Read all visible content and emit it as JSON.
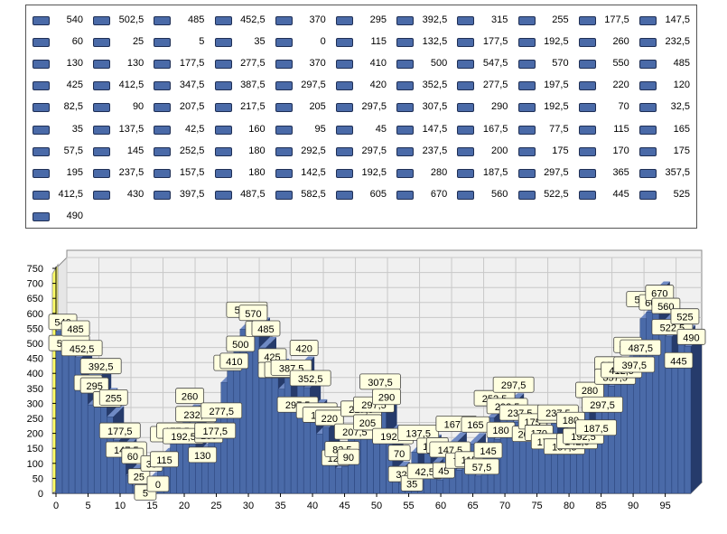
{
  "chart_data": {
    "type": "bar",
    "x": [
      0,
      1,
      2,
      3,
      4,
      5,
      6,
      7,
      8,
      9,
      10,
      11,
      12,
      13,
      14,
      15,
      16,
      17,
      18,
      19,
      20,
      21,
      22,
      23,
      24,
      25,
      26,
      27,
      28,
      29,
      30,
      31,
      32,
      33,
      34,
      35,
      36,
      37,
      38,
      39,
      40,
      41,
      42,
      43,
      44,
      45,
      46,
      47,
      48,
      49,
      50,
      51,
      52,
      53,
      54,
      55,
      56,
      57,
      58,
      59,
      60,
      61,
      62,
      63,
      64,
      65,
      66,
      67,
      68,
      69,
      70,
      71,
      72,
      73,
      74,
      75,
      76,
      77,
      78,
      79,
      80,
      81,
      82,
      83,
      84,
      85,
      86,
      87,
      88,
      89,
      90,
      91,
      92,
      93,
      94,
      95,
      96,
      97,
      98,
      99
    ],
    "values": [
      540,
      502.5,
      485,
      452.5,
      370,
      295,
      392.5,
      315,
      255,
      177.5,
      147.5,
      60,
      25,
      5,
      35,
      0,
      115,
      132.5,
      177.5,
      192.5,
      260,
      232.5,
      130,
      130,
      177.5,
      277.5,
      370,
      410,
      500,
      547.5,
      570,
      550,
      485,
      425,
      412.5,
      347.5,
      387.5,
      297.5,
      420,
      352.5,
      277.5,
      197.5,
      220,
      120,
      82.5,
      90,
      207.5,
      217.5,
      205,
      297.5,
      307.5,
      290,
      192.5,
      70,
      32.5,
      35,
      137.5,
      42.5,
      160,
      95,
      45,
      147.5,
      167.5,
      77.5,
      115,
      165,
      57.5,
      145,
      252.5,
      180,
      292.5,
      297.5,
      237.5,
      200,
      175,
      170,
      175,
      195,
      237.5,
      157.5,
      180,
      142.5,
      192.5,
      280,
      187.5,
      297.5,
      365,
      357.5,
      412.5,
      430,
      397.5,
      487.5,
      582.5,
      605,
      670,
      560,
      522.5,
      445,
      525,
      490
    ],
    "value_labels": [
      "540",
      "502,5",
      "485",
      "452,5",
      "370",
      "295",
      "392,5",
      "315",
      "255",
      "177,5",
      "147,5",
      "60",
      "25",
      "5",
      "35",
      "0",
      "115",
      "132,5",
      "177,5",
      "192,5",
      "260",
      "232,5",
      "130",
      "130",
      "177,5",
      "277,5",
      "370",
      "410",
      "500",
      "547,5",
      "570",
      "550",
      "485",
      "425",
      "412,5",
      "347,5",
      "387,5",
      "297,5",
      "420",
      "352,5",
      "277,5",
      "197,5",
      "220",
      "120",
      "82,5",
      "90",
      "207,5",
      "217,5",
      "205",
      "297,5",
      "307,5",
      "290",
      "192,5",
      "70",
      "32,5",
      "35",
      "137,5",
      "42,5",
      "160",
      "95",
      "45",
      "147,5",
      "167,5",
      "77,5",
      "115",
      "165",
      "57,5",
      "145",
      "252,5",
      "180",
      "292,5",
      "297,5",
      "237,5",
      "200",
      "175",
      "170",
      "175",
      "195",
      "237,5",
      "157,5",
      "180",
      "142,5",
      "192,5",
      "280",
      "187,5",
      "297,5",
      "365",
      "357,5",
      "412,5",
      "430",
      "397,5",
      "487,5",
      "582,5",
      "605",
      "670",
      "560",
      "522,5",
      "445",
      "525",
      "490"
    ],
    "legend_labels": [
      "540",
      "502,5",
      "485",
      "452,5",
      "370",
      "295",
      "392,5",
      "315",
      "255",
      "177,5",
      "147,5",
      "60",
      "25",
      "5",
      "35",
      "0",
      "115",
      "132,5",
      "177,5",
      "192,5",
      "260",
      "232,5",
      "130",
      "130",
      "177,5",
      "277,5",
      "370",
      "410",
      "500",
      "547,5",
      "570",
      "550",
      "485",
      "425",
      "412,5",
      "347,5",
      "387,5",
      "297,5",
      "420",
      "352,5",
      "277,5",
      "197,5",
      "220",
      "120",
      "82,5",
      "90",
      "207,5",
      "217,5",
      "205",
      "297,5",
      "307,5",
      "290",
      "192,5",
      "70",
      "32,5",
      "35",
      "137,5",
      "42,5",
      "160",
      "95",
      "45",
      "147,5",
      "167,5",
      "77,5",
      "115",
      "165",
      "57,5",
      "145",
      "252,5",
      "180",
      "292,5",
      "297,5",
      "237,5",
      "200",
      "175",
      "170",
      "175",
      "195",
      "237,5",
      "157,5",
      "180",
      "142,5",
      "192,5",
      "280",
      "187,5",
      "297,5",
      "365",
      "357,5",
      "412,5",
      "430",
      "397,5",
      "487,5",
      "582,5",
      "605",
      "670",
      "560",
      "522,5",
      "445",
      "525",
      "490"
    ],
    "x_ticks": [
      "0",
      "5",
      "10",
      "15",
      "20",
      "25",
      "30",
      "35",
      "40",
      "45",
      "50",
      "55",
      "60",
      "65",
      "70",
      "75",
      "80",
      "85",
      "90",
      "95"
    ],
    "y_ticks": [
      "0",
      "50",
      "100",
      "150",
      "200",
      "250",
      "300",
      "350",
      "400",
      "450",
      "500",
      "550",
      "600",
      "650",
      "700",
      "750"
    ],
    "ylim": [
      0,
      750
    ],
    "xlim": [
      0,
      99
    ],
    "grid": true,
    "legend_position": "top",
    "bar_color": "#4a6aa8",
    "bar_top_color": "#6f8ac4",
    "bar_side_color": "#263b6b",
    "wall_color": "#f0f0f0",
    "label_fill": "#ffffe0"
  }
}
